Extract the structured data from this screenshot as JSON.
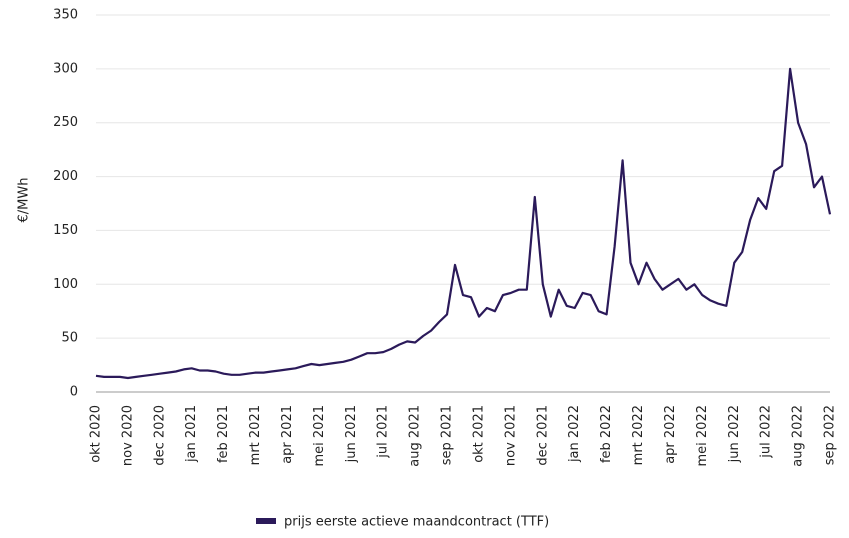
{
  "chart_data": {
    "type": "line",
    "y_label": "€/MWh",
    "categories": [
      "okt 2020",
      null,
      null,
      null,
      "nov 2020",
      null,
      null,
      null,
      "dec 2020",
      null,
      null,
      null,
      "jan 2021",
      null,
      null,
      null,
      "feb 2021",
      null,
      null,
      null,
      "mrt 2021",
      null,
      null,
      null,
      "apr 2021",
      null,
      null,
      null,
      "mei 2021",
      null,
      null,
      null,
      "jun 2021",
      null,
      null,
      null,
      "jul 2021",
      null,
      null,
      null,
      "aug 2021",
      null,
      null,
      null,
      "sep 2021",
      null,
      null,
      null,
      "okt 2021",
      null,
      null,
      null,
      "nov 2021",
      null,
      null,
      null,
      "dec 2021",
      null,
      null,
      null,
      "jan 2022",
      null,
      null,
      null,
      "feb 2022",
      null,
      null,
      null,
      "mrt 2022",
      null,
      null,
      null,
      "apr 2022",
      null,
      null,
      null,
      "mei 2022",
      null,
      null,
      null,
      "jun 2022",
      null,
      null,
      null,
      "jul 2022",
      null,
      null,
      null,
      "aug 2022",
      null,
      null,
      null,
      "sep 2022"
    ],
    "series": [
      {
        "name": "prijs eerste actieve maandcontract (TTF)",
        "color": "#2b1a5a",
        "values": [
          15,
          14,
          14,
          14,
          13,
          14,
          15,
          16,
          17,
          18,
          19,
          21,
          22,
          20,
          20,
          19,
          17,
          16,
          16,
          17,
          18,
          18,
          19,
          20,
          21,
          22,
          24,
          26,
          25,
          26,
          27,
          28,
          30,
          33,
          36,
          36,
          37,
          40,
          44,
          47,
          46,
          52,
          57,
          65,
          72,
          118,
          90,
          88,
          70,
          78,
          75,
          90,
          92,
          95,
          95,
          181,
          100,
          70,
          95,
          80,
          78,
          92,
          90,
          75,
          72,
          135,
          215,
          120,
          100,
          120,
          105,
          95,
          100,
          105,
          95,
          100,
          90,
          85,
          82,
          80,
          120,
          130,
          160,
          180,
          170,
          205,
          210,
          300,
          250,
          230,
          190,
          200,
          165
        ]
      }
    ],
    "ylim": [
      0,
      350
    ],
    "yticks": [
      0,
      50,
      100,
      150,
      200,
      250,
      300,
      350
    ],
    "grid": true
  }
}
